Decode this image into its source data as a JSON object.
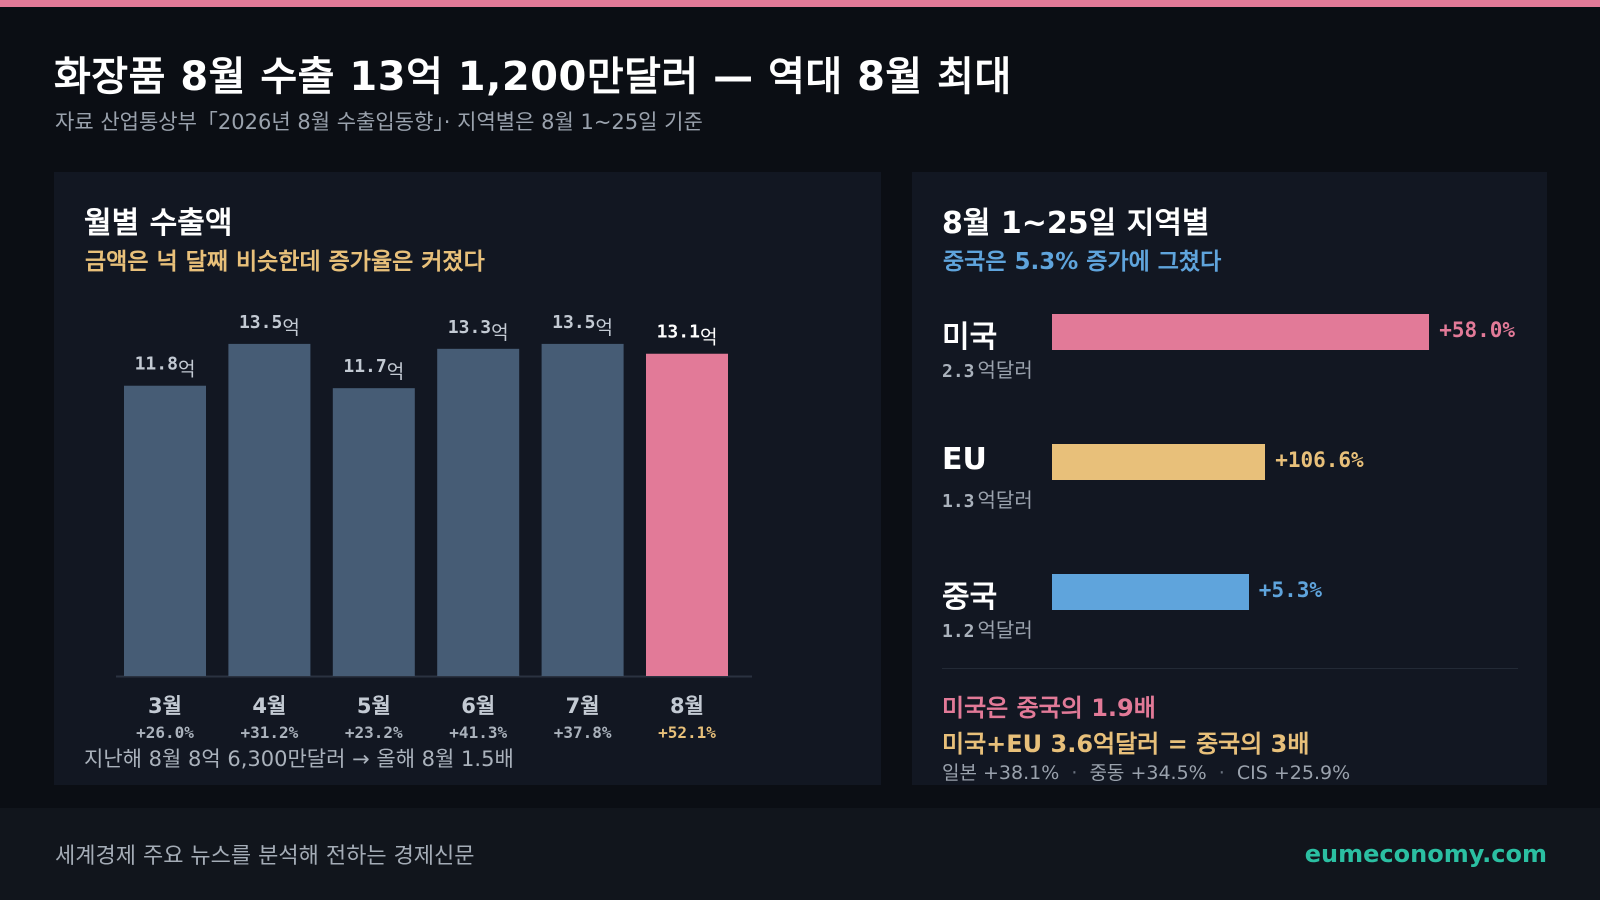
{
  "header": {
    "title": "화장품 8월 수출 13억 1,200만달러 — 역대 8월 최대",
    "subtitle": "자료 산업통상부「2026년 8월 수출입동향」· 지역별은 8월 1~25일 기준"
  },
  "left_panel": {
    "title": "월별 수출액",
    "subtitle": "금액은 넉 달째 비슷한데 증가율은 커졌다",
    "note": "지난해 8월 8억 6,300만달러 → 올해 8월 1.5배",
    "unit_suffix": "억"
  },
  "right_panel": {
    "title": "8월 1~25일 지역별",
    "subtitle": "중국은 5.3% 증가에 그쳤다",
    "amount_unit": "억달러",
    "summary_line1": "미국은 중국의 1.9배",
    "summary_line2": "미국+EU 3.6억달러 = 중국의 3배",
    "minor": [
      {
        "label": "일본",
        "value": "+38.1%"
      },
      {
        "label": "중동",
        "value": "+34.5%"
      },
      {
        "label": "CIS",
        "value": "+25.9%"
      }
    ]
  },
  "footer": {
    "tagline": "세계경제 주요 뉴스를 분석해 전하는 경제신문",
    "site": "eumeconomy.com"
  },
  "colors": {
    "bar_default": "#465c75",
    "bar_highlight": "#e27a98",
    "accent_yellow": "#e8c07a",
    "accent_blue": "#5fa4dc",
    "accent_pink": "#e27a98",
    "brand_teal": "#2bbfa2"
  },
  "chart_data": [
    {
      "type": "bar",
      "categories": [
        "3월",
        "4월",
        "5월",
        "6월",
        "7월",
        "8월"
      ],
      "values": [
        11.8,
        13.5,
        11.7,
        13.3,
        13.5,
        13.1
      ],
      "value_labels": [
        "11.8",
        "13.5",
        "11.7",
        "13.3",
        "13.5",
        "13.1"
      ],
      "growth": [
        "+26.0%",
        "+31.2%",
        "+23.2%",
        "+41.3%",
        "+37.8%",
        "+52.1%"
      ],
      "highlight_index": 5,
      "title": "월별 수출액",
      "xlabel": "",
      "ylabel": "",
      "grid": false
    },
    {
      "type": "bar",
      "orientation": "horizontal",
      "categories": [
        "미국",
        "EU",
        "중국"
      ],
      "amounts": [
        2.3,
        1.3,
        1.2
      ],
      "amount_labels": [
        "2.3",
        "1.3",
        "1.2"
      ],
      "growth_labels": [
        "+58.0%",
        "+106.6%",
        "+5.3%"
      ],
      "colors": [
        "#e27a98",
        "#e8c07a",
        "#5fa4dc"
      ],
      "title": "8월 1~25일 지역별",
      "grid": false
    }
  ]
}
